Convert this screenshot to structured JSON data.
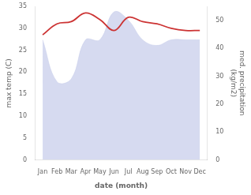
{
  "chart_data": {
    "type": "line",
    "categories": [
      "Jan",
      "Feb",
      "Mar",
      "Apr",
      "May",
      "Jun",
      "Jul",
      "Aug",
      "Sep",
      "Oct",
      "Nov",
      "Dec"
    ],
    "series": [
      {
        "type": "area",
        "axis": "y2",
        "color": "#c5cae9",
        "values": [
          43,
          28,
          29,
          43,
          43,
          53,
          50,
          43,
          41,
          43,
          43,
          43
        ]
      },
      {
        "type": "line",
        "color": "#cc3333",
        "values": [
          28.5,
          31.0,
          31.5,
          33.5,
          32.0,
          29.5,
          32.5,
          31.5,
          31.0,
          30.0,
          29.5,
          29.5
        ]
      }
    ],
    "xlabel": "date (month)",
    "ylabel": "max temp (C)",
    "y2label": "med. precipitation\n(kg/m2)",
    "ylim": [
      0,
      35
    ],
    "yticks": [
      0,
      5,
      10,
      15,
      20,
      25,
      30,
      35
    ],
    "y2lim": [
      0,
      55
    ],
    "y2ticks": [
      0,
      10,
      20,
      30,
      40,
      50
    ],
    "background_color": "#ffffff",
    "grid": false
  }
}
